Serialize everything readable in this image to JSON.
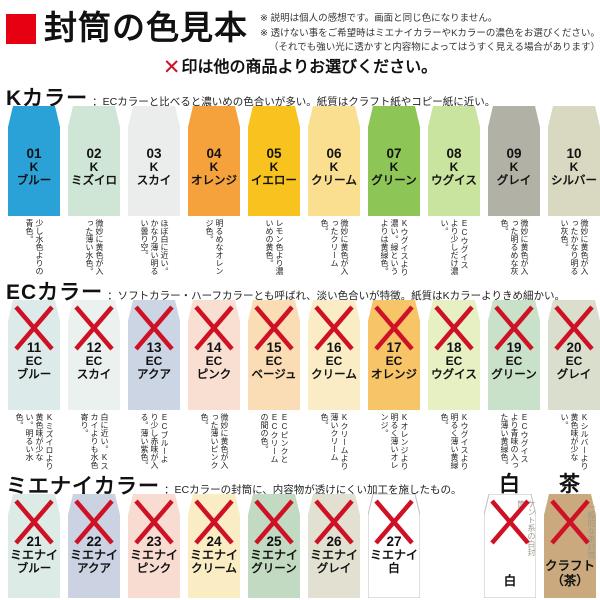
{
  "colors": {
    "accent": "#e60012",
    "x_mark": "#cf1126"
  },
  "header": {
    "title": "封筒の色見本",
    "notes": [
      "※ 説明は個人の感想です。画面と同じ色になりません。",
      "※ 透けない事をご希望時はミエナイカラーやKカラーの濃色をお選びください。",
      "（それでも強い光に透かすと内容物によってはうすく見える場合があります）"
    ]
  },
  "x_note": {
    "mark": "✕",
    "text": "印は他の商品よりお選びください。"
  },
  "sections": [
    {
      "id": "k",
      "name": "Kカラー",
      "desc": "：ECカラーと比べると濃いめの色合いが多い。紙質はクラフト紙やコピー紙に近い。",
      "swatches": [
        {
          "num": "01",
          "brand": "K",
          "name": "ブルー",
          "color": "#2aa2d8",
          "x": false,
          "desc": "少し水色よりの青色。"
        },
        {
          "num": "02",
          "brand": "K",
          "name": "ミズイロ",
          "color": "#cfe5d5",
          "x": false,
          "desc": "微妙に黄色が入った薄い水色。"
        },
        {
          "num": "03",
          "brand": "K",
          "name": "スカイ",
          "color": "#eaedeb",
          "x": false,
          "desc": "ほぼ白に近い。かなり薄い明るい曇り空。"
        },
        {
          "num": "04",
          "brand": "K",
          "name": "オレンジ",
          "color": "#f5a23d",
          "x": false,
          "desc": "明るめなオレンジ色。"
        },
        {
          "num": "05",
          "brand": "K",
          "name": "イエロー",
          "color": "#f8c31e",
          "x": false,
          "desc": "レモン色より濃いめの黄色。"
        },
        {
          "num": "06",
          "brand": "K",
          "name": "クリーム",
          "color": "#fadf90",
          "x": false,
          "desc": "微妙に黄色が入ったクリーム色。"
        },
        {
          "num": "07",
          "brand": "K",
          "name": "グリーン",
          "color": "#8dc556",
          "x": false,
          "desc": "Kウグイスより濃い。緑というよりは黄緑色。"
        },
        {
          "num": "08",
          "brand": "K",
          "name": "ウグイス",
          "color": "#c9e49f",
          "x": false,
          "desc": "ECウグイスより少しだけ濃い。"
        },
        {
          "num": "09",
          "brand": "K",
          "name": "グレイ",
          "color": "#b2b1a5",
          "x": false,
          "desc": "微妙に黄色が入った明るめな灰色。"
        },
        {
          "num": "10",
          "brand": "K",
          "name": "シルバー",
          "color": "#d9d8c1",
          "x": false,
          "desc": "微妙に黄色が入ったかなり明るい灰色。"
        }
      ]
    },
    {
      "id": "ec",
      "name": "ECカラー",
      "desc": "：ソフトカラー・ハーフカラーとも呼ばれ、淡い色合いが特徴。紙質はKカラーよりきめ細かい。",
      "swatches": [
        {
          "num": "11",
          "brand": "EC",
          "name": "ブルー",
          "color": "#dcebe9",
          "x": true,
          "desc": "Kミズイロより黄色味が少ない。明るい水色。"
        },
        {
          "num": "12",
          "brand": "EC",
          "name": "スカイ",
          "color": "#eaf1ee",
          "x": true,
          "desc": "白に近い。Kスカイよりも水色寄り。"
        },
        {
          "num": "13",
          "brand": "EC",
          "name": "アクア",
          "color": "#cbd5e4",
          "x": true,
          "desc": "ECブルーより少し赤味が入る。薄い紫色。"
        },
        {
          "num": "14",
          "brand": "EC",
          "name": "ピンク",
          "color": "#f9ded2",
          "x": true,
          "desc": "微妙に黄色が入った薄いピンク色。"
        },
        {
          "num": "15",
          "brand": "EC",
          "name": "ベージュ",
          "color": "#fbddb5",
          "x": true,
          "desc": "ECピンクとECクリームの間の色。"
        },
        {
          "num": "16",
          "brand": "EC",
          "name": "クリーム",
          "color": "#faedc5",
          "x": true,
          "desc": "Kクリームより薄いクリーム色。"
        },
        {
          "num": "17",
          "brand": "EC",
          "name": "オレンジ",
          "color": "#f7c468",
          "x": true,
          "desc": "Kオレンジより明るく薄いオレンジ。"
        },
        {
          "num": "18",
          "brand": "EC",
          "name": "ウグイス",
          "color": "#e7f0c3",
          "x": true,
          "desc": "Kウグイスより明るく薄い黄緑色。"
        },
        {
          "num": "19",
          "brand": "EC",
          "name": "グリーン",
          "color": "#c9e0c9",
          "x": true,
          "desc": "ECウグイスより青味の入った薄い黄緑色。"
        },
        {
          "num": "20",
          "brand": "EC",
          "name": "グレイ",
          "color": "#d9dfcc",
          "x": true,
          "desc": "Kシルバーより黄色味が少ない。"
        }
      ]
    },
    {
      "id": "mienai",
      "name": "ミエナイカラー",
      "desc": "：ECカラーの封筒に、内容物が透けにくい加工を施したもの。",
      "column_headings": {
        "white": "白",
        "brown": "茶"
      },
      "swatches": [
        {
          "num": "21",
          "brand": "ミエナイ",
          "name": "ブルー",
          "color": "#dcebe5",
          "x": true
        },
        {
          "num": "22",
          "brand": "ミエナイ",
          "name": "アクア",
          "color": "#cbd2e1",
          "x": true
        },
        {
          "num": "23",
          "brand": "ミエナイ",
          "name": "ピンク",
          "color": "#f8dcd1",
          "x": true
        },
        {
          "num": "24",
          "brand": "ミエナイ",
          "name": "クリーム",
          "color": "#faecc3",
          "x": true
        },
        {
          "num": "25",
          "brand": "ミエナイ",
          "name": "グリーン",
          "color": "#c1dac1",
          "x": true
        },
        {
          "num": "26",
          "brand": "ミエナイ",
          "name": "グレイ",
          "color": "#e1e0d1",
          "x": true
        },
        {
          "num": "27",
          "brand": "ミエナイ",
          "name": "白",
          "color": "#ffffff",
          "x": true
        }
      ],
      "extras": [
        {
          "vertical_text": "ケント系の白封筒",
          "label_lines": [
            "白"
          ],
          "color": "#ffffff",
          "x": true
        },
        {
          "vertical_text": "一般的な茶封筒",
          "label_lines": [
            "クラフト",
            "（茶）"
          ],
          "color": "#c9a97d",
          "x": true
        }
      ]
    }
  ]
}
